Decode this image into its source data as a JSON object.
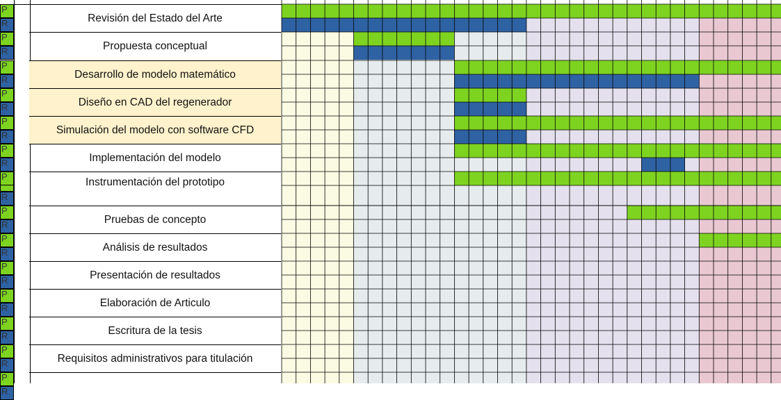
{
  "palette": {
    "plan": "#7ed321",
    "real": "#2f62a3",
    "shade_1": "#fafbe2",
    "shade_2": "#e6ecee",
    "shade_3": "#e4e0ed",
    "shade_4": "#e9c8d2",
    "highlight": "#fff2cc"
  },
  "row_codes": {
    "plan": "P",
    "real": "R"
  },
  "tasks": [
    {
      "label": "Revisión del Estado del Arte",
      "highlight": false,
      "plan": [
        [
          0,
          34
        ]
      ],
      "real": [
        [
          0,
          16
        ]
      ]
    },
    {
      "label": "Propuesta conceptual",
      "highlight": false,
      "plan": [
        [
          5,
          11
        ]
      ],
      "real": [
        [
          5,
          11
        ]
      ]
    },
    {
      "label": "Desarrollo de modelo matemático",
      "highlight": true,
      "plan": [
        [
          12,
          34
        ]
      ],
      "real": [
        [
          12,
          28
        ]
      ]
    },
    {
      "label": "Diseño en CAD del regenerador",
      "highlight": true,
      "plan": [
        [
          12,
          16
        ]
      ],
      "real": [
        [
          12,
          16
        ]
      ]
    },
    {
      "label": "Simulación del modelo con software CFD",
      "highlight": true,
      "plan": [
        [
          12,
          34
        ]
      ],
      "real": [
        [
          12,
          16
        ]
      ]
    },
    {
      "label": "Implementación del modelo",
      "highlight": false,
      "plan": [
        [
          12,
          34
        ]
      ],
      "real": [
        [
          25,
          27
        ]
      ]
    },
    {
      "label": "Instrumentación del prototipo",
      "highlight": false,
      "plan": [
        [
          12,
          34
        ]
      ],
      "real": []
    },
    {
      "label": "Pruebas de concepto",
      "highlight": false,
      "plan": [
        [
          24,
          34
        ]
      ],
      "real": []
    },
    {
      "label": "Análisis de resultados",
      "highlight": false,
      "plan": [
        [
          29,
          34
        ]
      ],
      "real": []
    },
    {
      "label": "Presentación de resultados",
      "highlight": false,
      "plan": [],
      "real": []
    },
    {
      "label": "Elaboración de Articulo",
      "highlight": false,
      "plan": [],
      "real": []
    },
    {
      "label": "Escritura de la tesis",
      "highlight": false,
      "plan": [],
      "real": []
    },
    {
      "label": "Requisitos administrativos para titulación",
      "highlight": false,
      "plan": [],
      "real": []
    },
    {
      "label": "",
      "highlight": false,
      "plan": [],
      "real": []
    }
  ]
}
